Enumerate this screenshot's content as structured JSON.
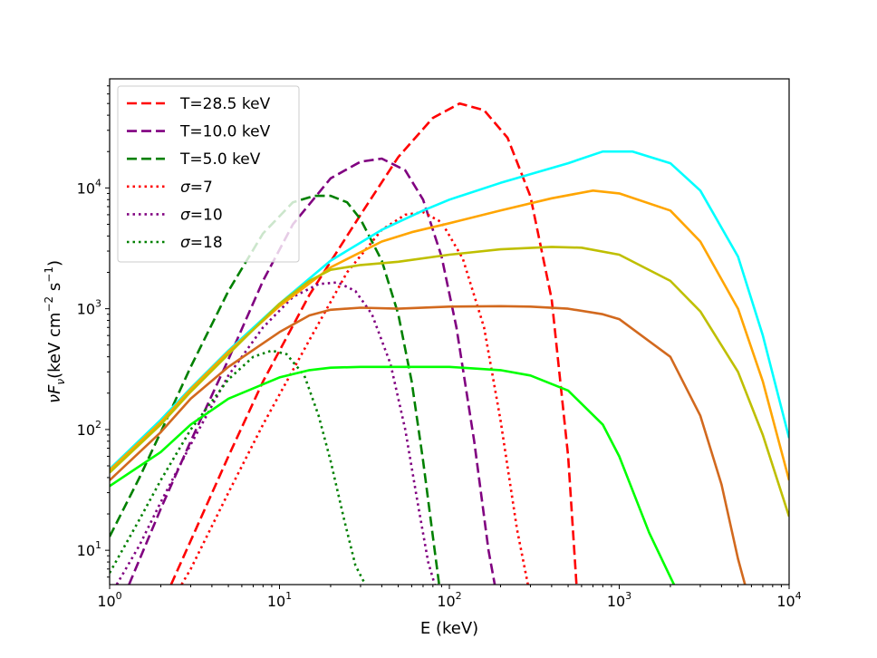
{
  "chart_data": {
    "type": "line",
    "x_scale": "log",
    "y_scale": "log",
    "xlim": [
      1,
      10000
    ],
    "ylim": [
      5.2,
      80000
    ],
    "xlabel": "E (keV)",
    "ylabel_parts": {
      "nu": "ν",
      "F": "F",
      "sub": "ν",
      "unit": "(keV cm",
      "exp1": "−2",
      "mid": " s",
      "exp2": "−1",
      "close": ")"
    },
    "x_ticks": [
      {
        "value": 1,
        "base": "10",
        "exp": "0"
      },
      {
        "value": 10,
        "base": "10",
        "exp": "1"
      },
      {
        "value": 100,
        "base": "10",
        "exp": "2"
      },
      {
        "value": 1000,
        "base": "10",
        "exp": "3"
      },
      {
        "value": 10000,
        "base": "10",
        "exp": "4"
      }
    ],
    "y_ticks": [
      {
        "value": 10,
        "base": "10",
        "exp": "1"
      },
      {
        "value": 100,
        "base": "10",
        "exp": "2"
      },
      {
        "value": 1000,
        "base": "10",
        "exp": "3"
      },
      {
        "value": 10000,
        "base": "10",
        "exp": "4"
      }
    ],
    "legend": [
      {
        "name": "T=28.5 keV",
        "color": "#ff0000",
        "style": "dashed"
      },
      {
        "name": "T=10.0 keV",
        "color": "#800080",
        "style": "dashed"
      },
      {
        "name": "T=5.0 keV",
        "color": "#008000",
        "style": "dashed"
      },
      {
        "name_prefix": "σ",
        "name_suffix": "=7",
        "color": "#ff0000",
        "style": "dotted"
      },
      {
        "name_prefix": "σ",
        "name_suffix": "=10",
        "color": "#800080",
        "style": "dotted"
      },
      {
        "name_prefix": "σ",
        "name_suffix": "=18",
        "color": "#008000",
        "style": "dotted"
      }
    ],
    "series": [
      {
        "name": "T=28.5 keV",
        "color": "#ff0000",
        "style": "dashed",
        "x": [
          2.3,
          3,
          5,
          8,
          15,
          30,
          50,
          80,
          115,
          160,
          220,
          300,
          400,
          500,
          560
        ],
        "y": [
          5.2,
          12,
          60,
          250,
          1300,
          6000,
          18000,
          38000,
          50000,
          44000,
          26000,
          8500,
          1200,
          60,
          5.2
        ]
      },
      {
        "name": "T=10.0 keV",
        "color": "#800080",
        "style": "dashed",
        "x": [
          1.3,
          2,
          3,
          5,
          8,
          12,
          20,
          30,
          40,
          55,
          70,
          90,
          110,
          140,
          170,
          185
        ],
        "y": [
          5.2,
          22,
          80,
          380,
          1700,
          5000,
          12000,
          16500,
          17500,
          14000,
          8000,
          2700,
          700,
          80,
          10,
          5.2
        ]
      },
      {
        "name": "T=5.0 keV",
        "color": "#008000",
        "style": "dashed",
        "x": [
          1,
          1.5,
          2,
          3,
          5,
          8,
          12,
          16,
          20,
          25,
          30,
          40,
          50,
          60,
          70,
          80,
          87
        ],
        "y": [
          13,
          40,
          95,
          330,
          1400,
          4200,
          7600,
          8600,
          8600,
          7600,
          5500,
          2500,
          900,
          250,
          55,
          13,
          5.2
        ]
      },
      {
        "name": "σ=7",
        "color": "#ff0000",
        "style": "dotted",
        "x": [
          2.65,
          3,
          5,
          8,
          15,
          25,
          40,
          55,
          70,
          90,
          120,
          160,
          200,
          250,
          290
        ],
        "y": [
          5.2,
          7,
          30,
          110,
          550,
          2000,
          4500,
          6000,
          6300,
          5200,
          2600,
          700,
          120,
          15,
          5.2
        ]
      },
      {
        "name": "σ=10",
        "color": "#800080",
        "style": "dotted",
        "x": [
          1.1,
          1.5,
          2,
          3,
          5,
          8,
          12,
          17,
          22,
          28,
          35,
          45,
          55,
          65,
          75,
          82
        ],
        "y": [
          5.2,
          11,
          25,
          75,
          280,
          700,
          1250,
          1600,
          1650,
          1400,
          900,
          350,
          100,
          25,
          8,
          5.2
        ]
      },
      {
        "name": "σ=18",
        "color": "#008000",
        "style": "dotted",
        "x": [
          1,
          1.5,
          2,
          3,
          5,
          7,
          9,
          11,
          14,
          17,
          20,
          24,
          28,
          32
        ],
        "y": [
          6.5,
          18,
          38,
          100,
          260,
          400,
          450,
          420,
          280,
          130,
          55,
          18,
          7.5,
          5.2
        ]
      },
      {
        "name": "cyan",
        "color": "#00ffff",
        "style": "solid",
        "x": [
          1,
          2,
          3,
          5,
          10,
          20,
          40,
          70,
          100,
          200,
          500,
          800,
          1200,
          2000,
          3000,
          5000,
          7000,
          10000
        ],
        "y": [
          47,
          120,
          220,
          450,
          1100,
          2500,
          4500,
          6500,
          8000,
          11000,
          16000,
          20000,
          20000,
          16000,
          9500,
          2700,
          600,
          85
        ]
      },
      {
        "name": "orange",
        "color": "#ffa500",
        "style": "solid",
        "x": [
          1,
          2,
          3,
          5,
          10,
          20,
          40,
          60,
          100,
          200,
          400,
          700,
          1000,
          2000,
          3000,
          5000,
          7000,
          10000
        ],
        "y": [
          46,
          115,
          215,
          440,
          1050,
          2200,
          3600,
          4300,
          5100,
          6500,
          8200,
          9500,
          9000,
          6500,
          3600,
          1000,
          250,
          38
        ]
      },
      {
        "name": "olive",
        "color": "#bfbf00",
        "style": "solid",
        "x": [
          1,
          2,
          3,
          5,
          10,
          15,
          20,
          30,
          50,
          100,
          200,
          400,
          600,
          1000,
          2000,
          3000,
          5000,
          7000,
          10000
        ],
        "y": [
          44,
          110,
          205,
          420,
          1100,
          1700,
          2100,
          2300,
          2450,
          2800,
          3100,
          3250,
          3200,
          2800,
          1700,
          950,
          300,
          90,
          19
        ]
      },
      {
        "name": "copper",
        "color": "#d2691e",
        "style": "solid",
        "x": [
          1,
          2,
          3,
          5,
          10,
          15,
          20,
          30,
          50,
          100,
          200,
          300,
          500,
          800,
          1000,
          2000,
          3000,
          4000,
          5000,
          5500
        ],
        "y": [
          38,
          95,
          180,
          330,
          640,
          880,
          980,
          1020,
          1000,
          1040,
          1050,
          1040,
          1000,
          900,
          820,
          400,
          130,
          35,
          8.5,
          5.2
        ]
      },
      {
        "name": "green",
        "color": "#00ff00",
        "style": "solid",
        "x": [
          1,
          2,
          3,
          5,
          10,
          15,
          20,
          30,
          50,
          100,
          200,
          300,
          500,
          800,
          1000,
          1500,
          2000,
          2100
        ],
        "y": [
          34,
          65,
          110,
          180,
          270,
          310,
          325,
          330,
          330,
          330,
          310,
          280,
          210,
          110,
          60,
          14,
          6,
          5.2
        ]
      }
    ]
  }
}
